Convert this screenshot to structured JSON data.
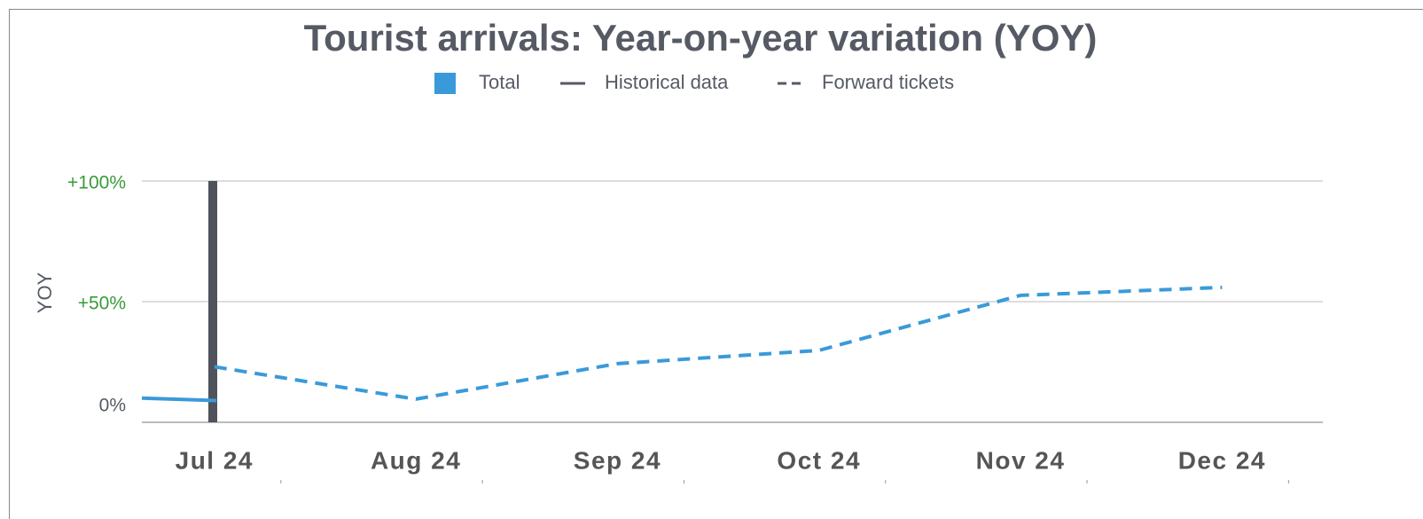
{
  "chart_data": {
    "type": "line",
    "title": "Tourist arrivals: Year-on-year variation (YOY)",
    "y_label": "YOY",
    "color_legend": {
      "label": "Total",
      "color": "#3a9ad9"
    },
    "series": [
      {
        "name": "Historical data",
        "color": "#3a9ad9",
        "style": "solid",
        "x": [
          -0.36,
          0.01
        ],
        "values": [
          10,
          9
        ]
      },
      {
        "name": "Forward tickets",
        "color": "#3a9ad9",
        "style": "dashed",
        "x": [
          0,
          1,
          2,
          3,
          4,
          5
        ],
        "values": [
          23,
          9.6,
          24.3,
          29.8,
          52.6,
          55.9
        ]
      }
    ],
    "xlim": [
      -0.36,
      5.5
    ],
    "xticks": [
      {
        "value": 0,
        "label": "Jul 24"
      },
      {
        "value": 1,
        "label": "Aug 24"
      },
      {
        "value": 2,
        "label": "Sep 24"
      },
      {
        "value": 3,
        "label": "Oct 24"
      },
      {
        "value": 4,
        "label": "Nov 24"
      },
      {
        "value": 5,
        "label": "Dec 24"
      }
    ],
    "ylim": [
      0,
      100
    ],
    "yticks": [
      {
        "value": 0,
        "label": "0%"
      },
      {
        "value": 50,
        "label": "+50%"
      },
      {
        "value": 100,
        "label": "+100%"
      }
    ],
    "grid": true
  }
}
